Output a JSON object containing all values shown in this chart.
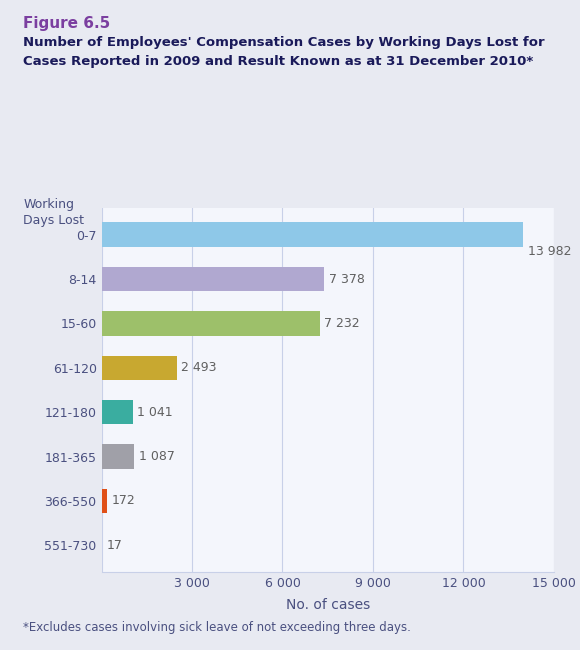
{
  "figure_label": "Figure 6.5",
  "title_line1": "Number of Employees' Compensation Cases by Working Days Lost for",
  "title_line2": "Cases Reported in 2009 and Result Known as at 31 December 2010*",
  "categories": [
    "0-7",
    "8-14",
    "15-60",
    "61-120",
    "121-180",
    "181-365",
    "366-550",
    "551-730"
  ],
  "values": [
    13982,
    7378,
    7232,
    2493,
    1041,
    1087,
    172,
    17
  ],
  "bar_colors": [
    "#8EC8E8",
    "#B0A8D0",
    "#9DC06A",
    "#C8A830",
    "#3AADA0",
    "#A0A0A8",
    "#E05018",
    "#DDDDDD"
  ],
  "xlabel": "No. of cases",
  "xlim": [
    0,
    15000
  ],
  "xticks": [
    0,
    3000,
    6000,
    9000,
    12000,
    15000
  ],
  "xtick_labels": [
    "",
    "3 000",
    "6 000",
    "9 000",
    "12 000",
    "15 000"
  ],
  "outer_background": "#E8EAF2",
  "plot_background": "#F4F6FC",
  "grid_color": "#C8D0E8",
  "footnote": "*Excludes cases involving sick leave of not exceeding three days.",
  "figure_label_color": "#7B3FA0",
  "title_color": "#1A1A5A",
  "axis_label_color": "#4A5080",
  "value_color": "#606060",
  "label_fontsize": 9,
  "bar_height": 0.55
}
